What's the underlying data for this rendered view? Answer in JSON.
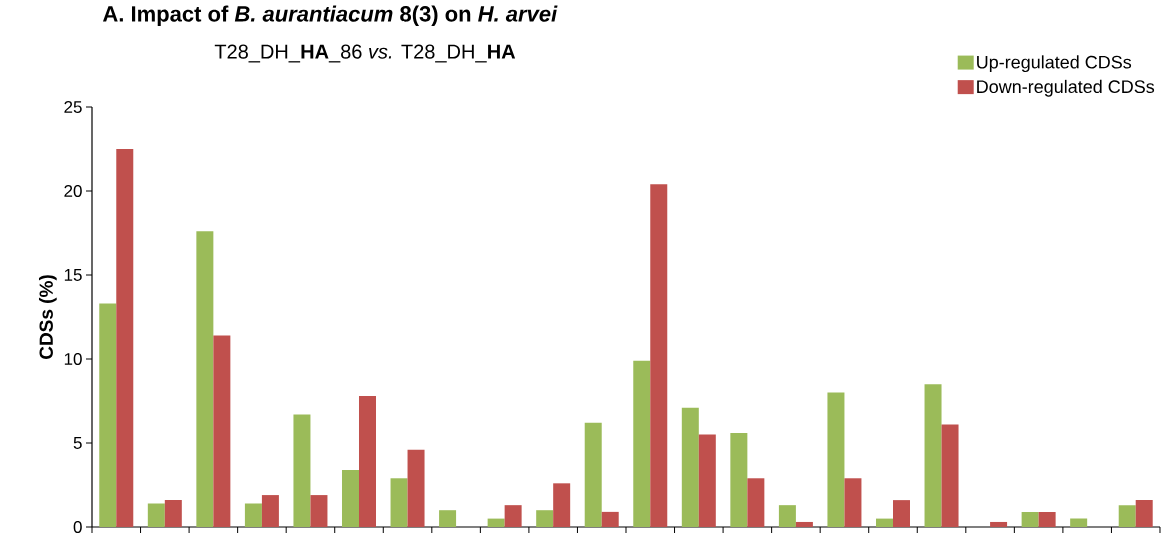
{
  "chart_data": {
    "type": "bar",
    "title": "A. Impact of *B. aurantiacum* 8(3) on *H. arvei*",
    "subtitle": "T28_DH_**HA**_86 *vs.* T28_DH_**HA**",
    "ylabel": "CDSs (%)",
    "categories": [
      null,
      null,
      null,
      null,
      null,
      null,
      null,
      null,
      null,
      null,
      null,
      null,
      null,
      null,
      null,
      null,
      null,
      null,
      null,
      null,
      null,
      null
    ],
    "series": [
      {
        "name": "Up-regulated CDSs",
        "color": "#9bbb59",
        "values": [
          13.3,
          1.4,
          17.6,
          1.4,
          6.7,
          3.4,
          2.9,
          1.0,
          0.5,
          1.0,
          6.2,
          9.9,
          7.1,
          5.6,
          1.3,
          8.0,
          0.5,
          8.5,
          0,
          0.9,
          0.5,
          1.3
        ]
      },
      {
        "name": "Down-regulated CDSs",
        "color": "#c0504d",
        "values": [
          22.5,
          1.6,
          11.4,
          1.9,
          1.9,
          7.8,
          4.6,
          0,
          1.3,
          2.6,
          0.9,
          20.4,
          5.5,
          2.9,
          0.3,
          2.9,
          1.6,
          6.1,
          0.3,
          0.9,
          0,
          1.6
        ]
      }
    ],
    "ylim": [
      0,
      25
    ],
    "yticks": [
      0,
      5,
      10,
      15,
      20,
      25
    ],
    "legend": "top right"
  }
}
